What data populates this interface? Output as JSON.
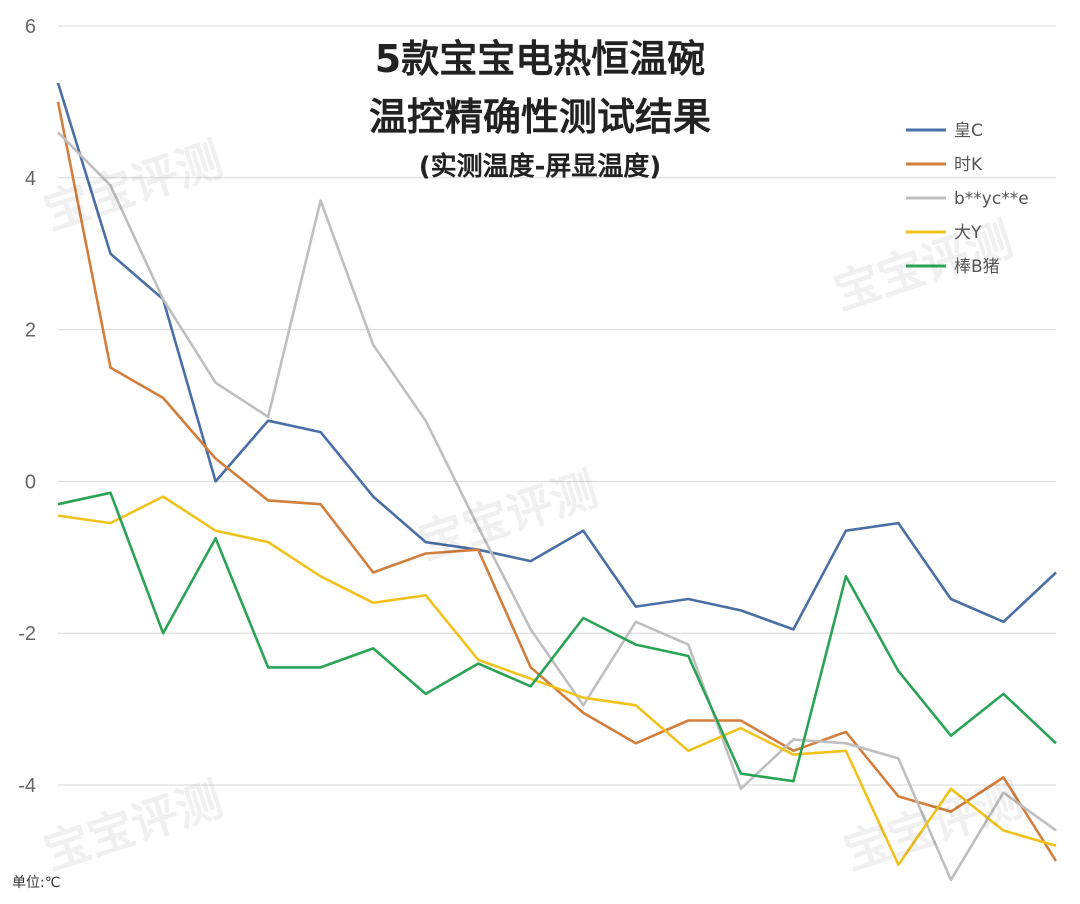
{
  "watermark": "宝宝评测",
  "unit_label": "单位:℃",
  "chart_data": {
    "type": "line",
    "title_line1": "5款宝宝电热恒温碗",
    "title_line2": "温控精确性测试结果",
    "subtitle": "(实测温度-屏显温度)",
    "ylim": [
      -5.1,
      6
    ],
    "yticks": [
      6,
      4,
      2,
      0,
      -2,
      -4
    ],
    "grid": true,
    "legend_position": "top-right",
    "x": [
      1,
      2,
      3,
      4,
      5,
      6,
      7,
      8,
      9,
      10,
      11,
      12,
      13,
      14,
      15,
      16,
      17,
      18,
      19,
      20
    ],
    "series": [
      {
        "name": "皇C",
        "color": "#4a6fa5",
        "values": [
          5.25,
          3.0,
          2.4,
          0.0,
          0.8,
          0.65,
          -0.2,
          -0.8,
          -0.9,
          -1.05,
          -0.65,
          -1.65,
          -1.55,
          -1.7,
          -1.95,
          -0.65,
          -0.55,
          -1.55,
          -1.85,
          -1.2
        ]
      },
      {
        "name": "时K",
        "color": "#d27f3e",
        "values": [
          5.0,
          1.5,
          1.1,
          0.3,
          -0.25,
          -0.3,
          -1.2,
          -0.95,
          -0.9,
          -2.45,
          -3.05,
          -3.45,
          -3.15,
          -3.15,
          -3.55,
          -3.3,
          -4.15,
          -4.35,
          -3.9,
          -5.0
        ]
      },
      {
        "name": "b**yc**e",
        "color": "#bfbfbf",
        "values": [
          4.6,
          3.9,
          2.4,
          1.3,
          0.85,
          3.7,
          1.8,
          0.8,
          -0.6,
          -1.95,
          -2.95,
          -1.85,
          -2.15,
          -4.05,
          -3.4,
          -3.45,
          -3.65,
          -5.25,
          -4.1,
          -4.6
        ]
      },
      {
        "name": "大Y",
        "color": "#f0c21d",
        "values": [
          -0.45,
          -0.55,
          -0.2,
          -0.65,
          -0.8,
          -1.25,
          -1.6,
          -1.5,
          -2.35,
          -2.6,
          -2.85,
          -2.95,
          -3.55,
          -3.25,
          -3.6,
          -3.55,
          -5.05,
          -4.05,
          -4.6,
          -4.8
        ]
      },
      {
        "name": "棒B猪",
        "color": "#2aa356",
        "values": [
          -0.3,
          -0.15,
          -2.0,
          -0.75,
          -2.45,
          -2.45,
          -2.2,
          -2.8,
          -2.4,
          -2.7,
          -1.8,
          -2.15,
          -2.3,
          -3.85,
          -3.95,
          -1.25,
          -2.5,
          -3.35,
          -2.8,
          -3.45
        ]
      }
    ]
  }
}
